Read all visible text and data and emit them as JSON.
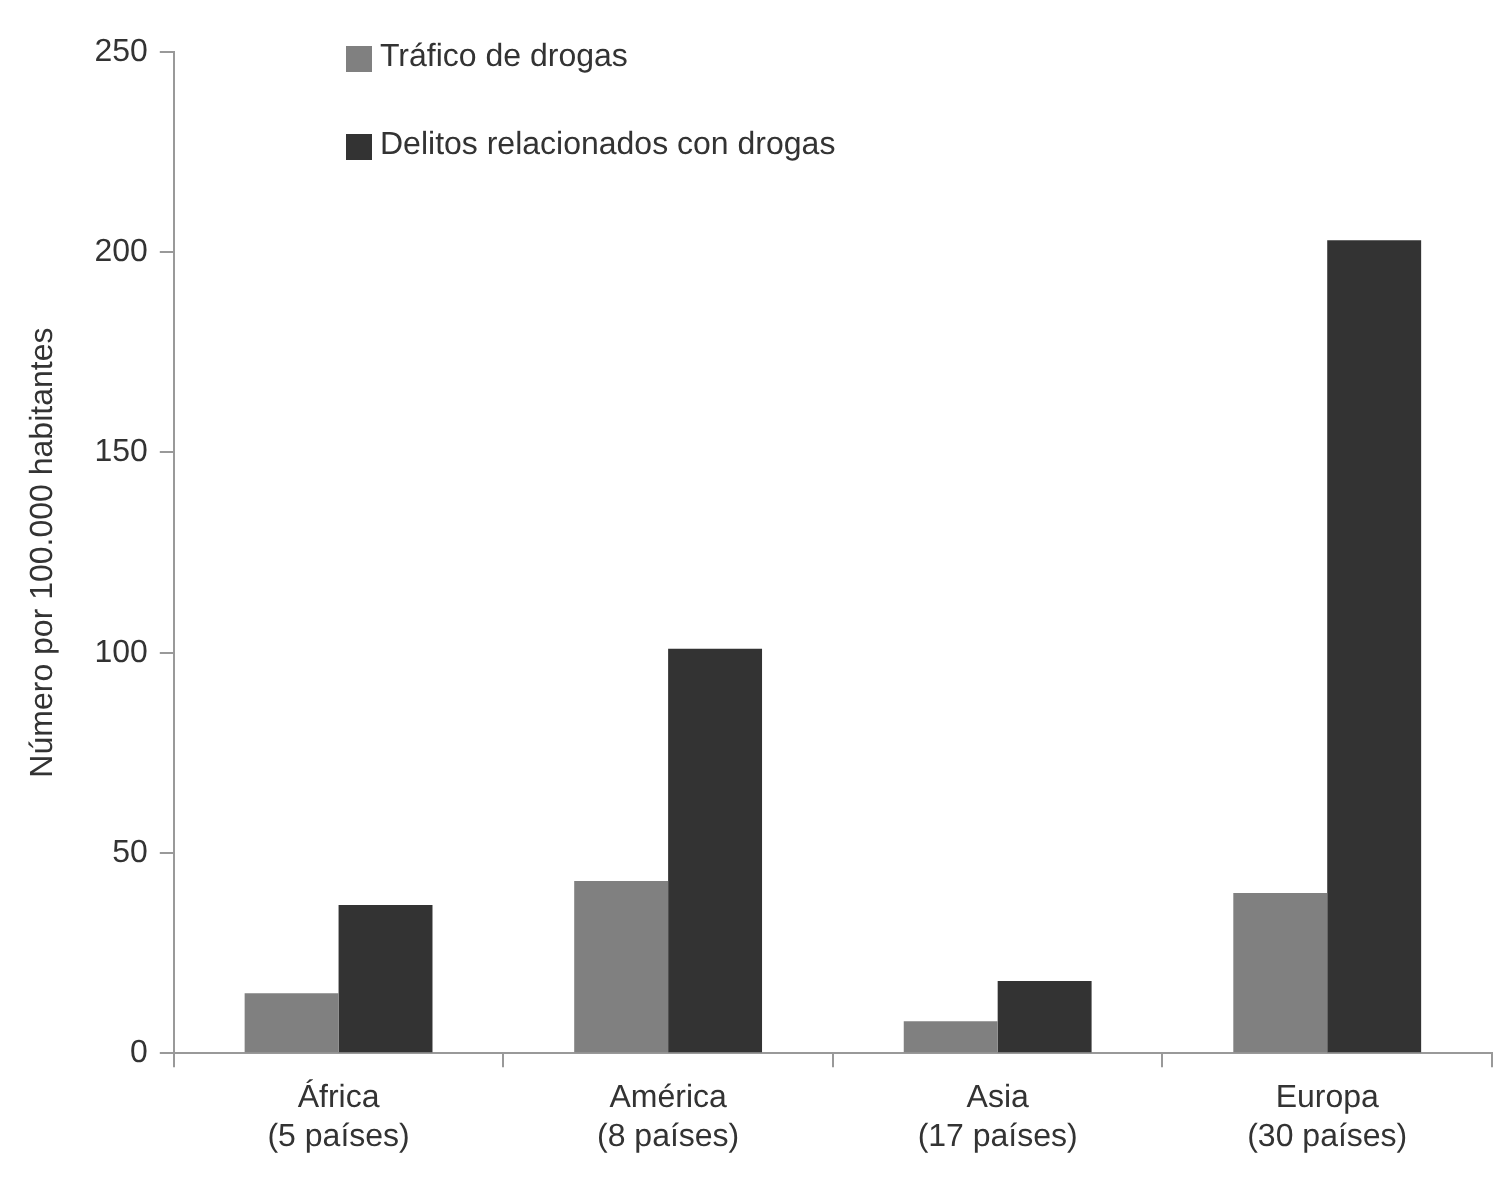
{
  "chart_data": {
    "type": "bar",
    "ylabel": "Número por 100.000 habitantes",
    "categories": [
      "África\n(5 países)",
      "América\n(8 países)",
      "Asia\n(17 países)",
      "Europa\n(30 países)"
    ],
    "series": [
      {
        "name": "Tráfico de drogas",
        "color": "#808080",
        "values": [
          15,
          43,
          8,
          40
        ]
      },
      {
        "name": "Delitos relacionados con drogas",
        "color": "#333333",
        "values": [
          37,
          101,
          18,
          203
        ]
      }
    ],
    "ylim": [
      0,
      250
    ],
    "yticks": [
      0,
      50,
      100,
      150,
      200,
      250
    ],
    "grid": false,
    "legend": "top left"
  }
}
